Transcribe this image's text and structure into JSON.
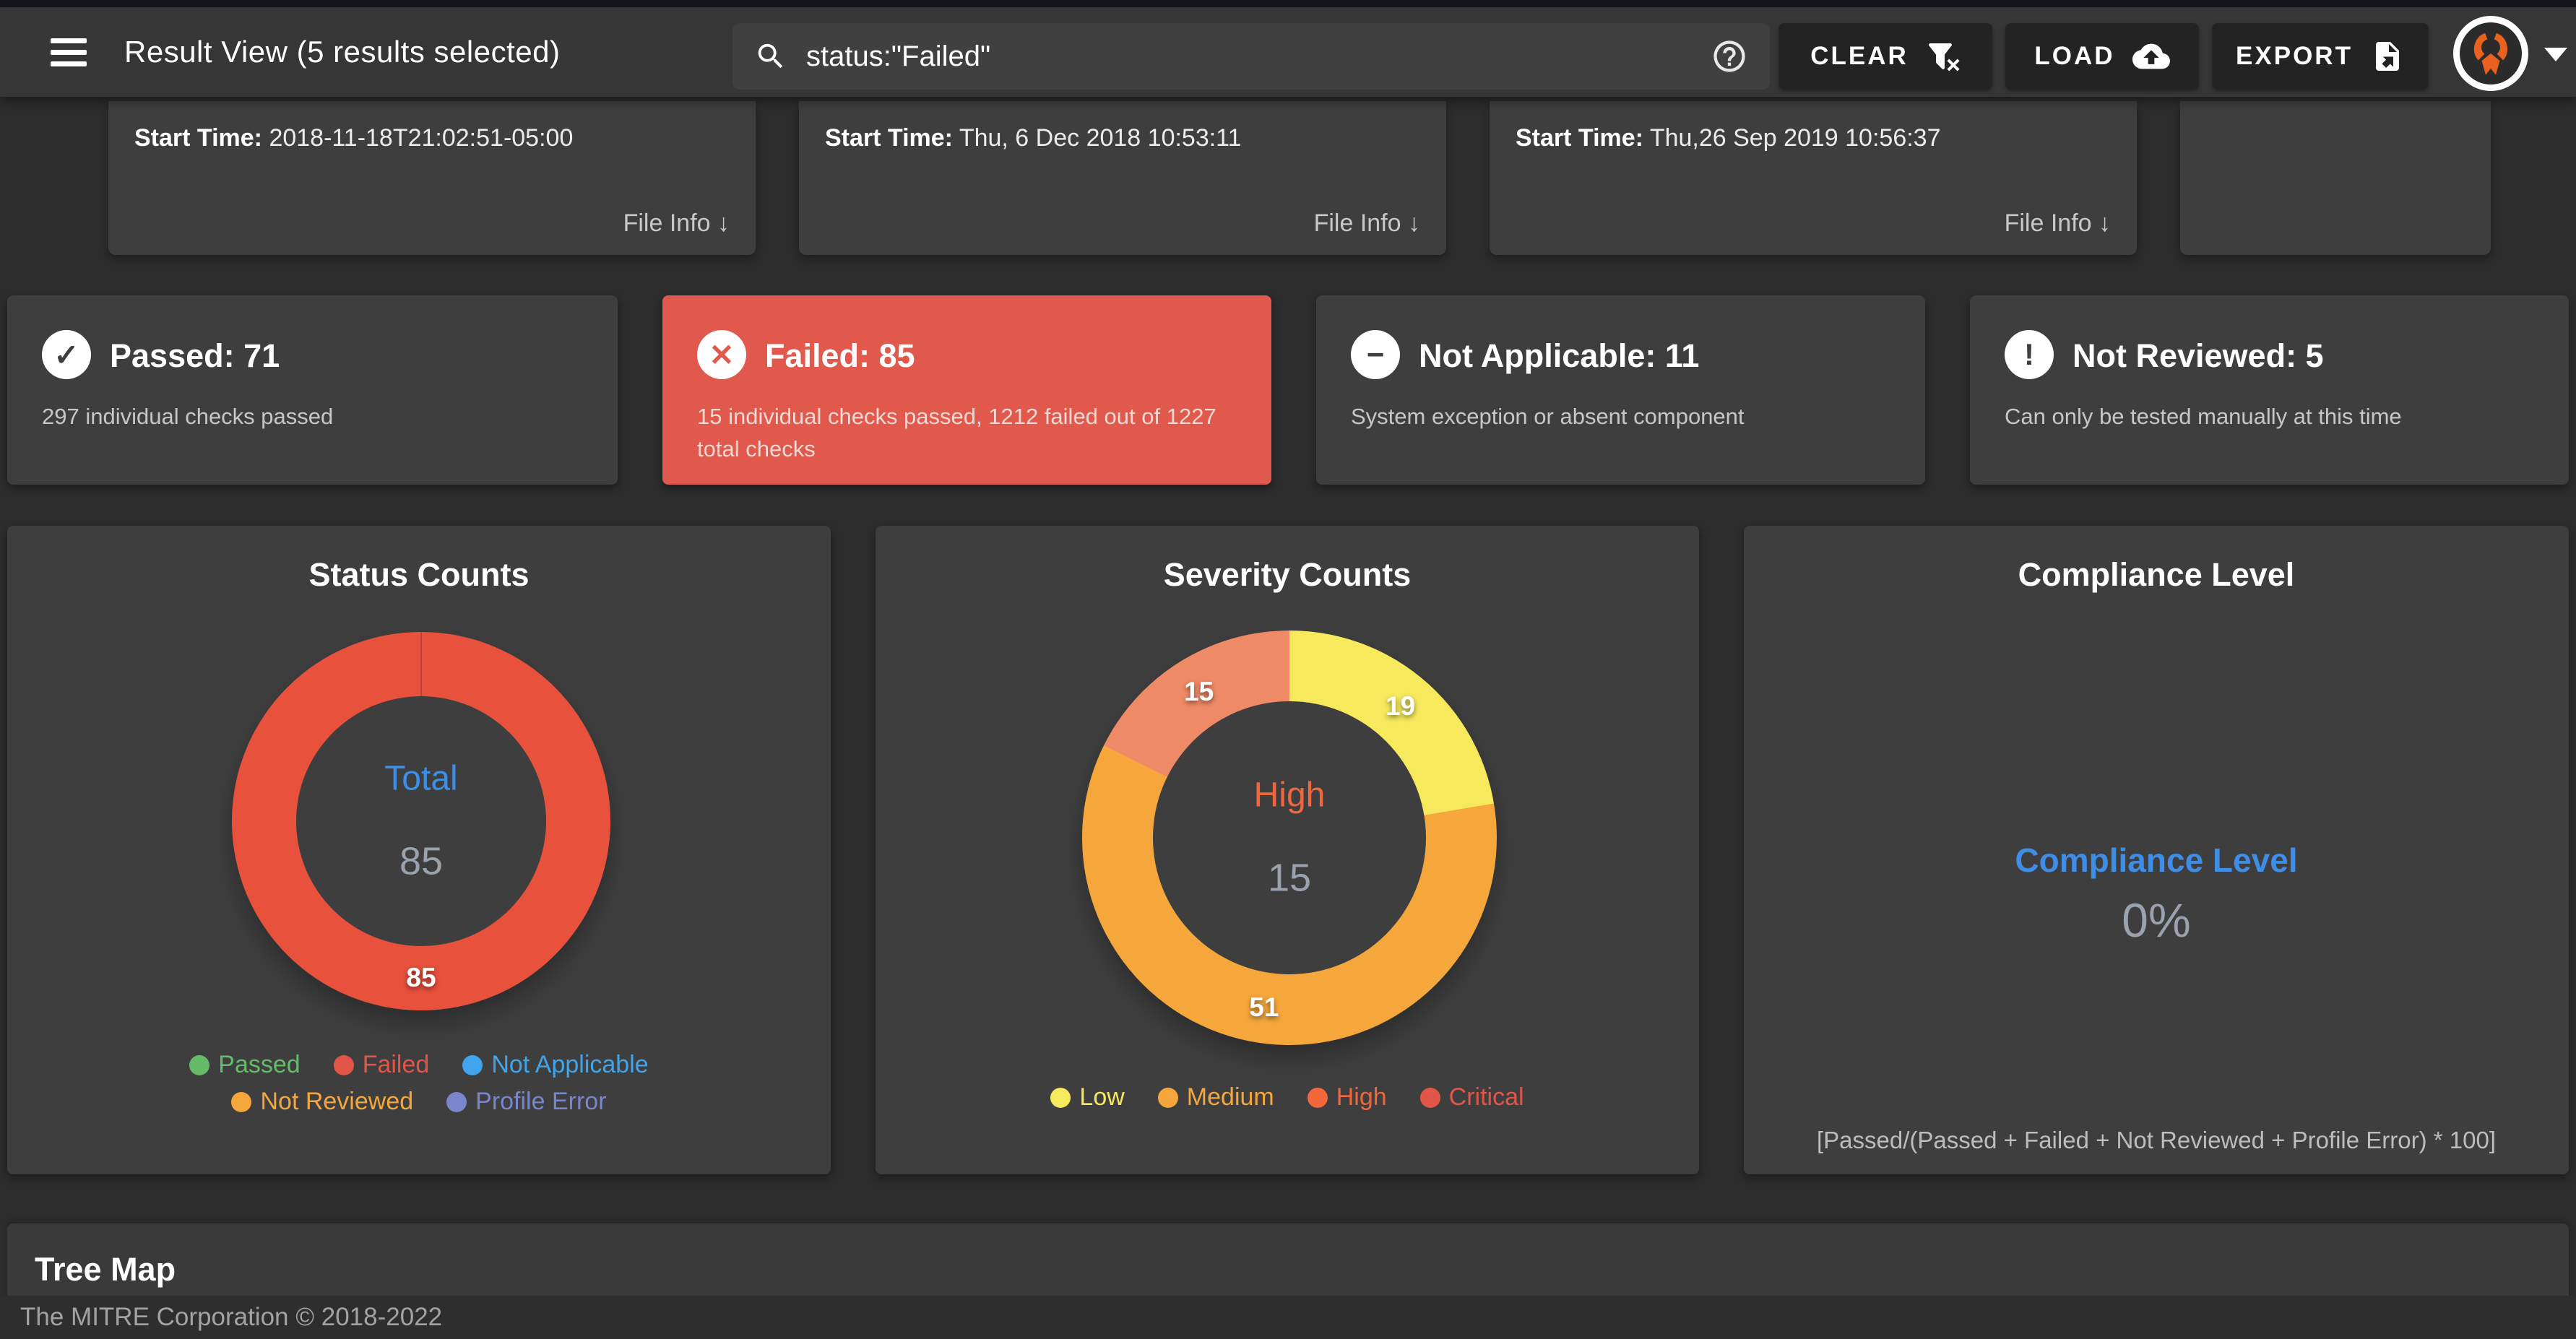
{
  "app": {
    "title": "Result View (5 results selected)",
    "search": {
      "value": "status:\"Failed\""
    },
    "buttons": {
      "clear": "CLEAR",
      "load": "LOAD",
      "export": "EXPORT"
    },
    "accent_blue": "#3e8ee8",
    "failed_red": "#e0594c"
  },
  "file_cards": [
    {
      "label": "Start Time:",
      "value": "2018-11-18T21:02:51-05:00",
      "file_info": "File Info ↓"
    },
    {
      "label": "Start Time:",
      "value": "Thu, 6 Dec 2018 10:53:11",
      "file_info": "File Info ↓"
    },
    {
      "label": "Start Time:",
      "value": "Thu,26 Sep 2019 10:56:37",
      "file_info": "File Info ↓"
    },
    {
      "label": "",
      "value": "",
      "file_info": ""
    }
  ],
  "status_cards": [
    {
      "title": "Passed: 71",
      "subtitle": "297 individual checks passed",
      "icon_glyph": "✓"
    },
    {
      "title": "Failed: 85",
      "subtitle": "15 individual checks passed, 1212 failed out of 1227 total checks",
      "icon_glyph": "✕"
    },
    {
      "title": "Not Applicable: 11",
      "subtitle": "System exception or absent component",
      "icon_glyph": "−"
    },
    {
      "title": "Not Reviewed: 5",
      "subtitle": "Can only be tested manually at this time",
      "icon_glyph": "!"
    }
  ],
  "chart_data": [
    {
      "type": "pie",
      "title": "Status Counts",
      "center_label": "Total",
      "center_label_color": "#3e8ee8",
      "center_value": "85",
      "center_value_color": "#9aa3ad",
      "series": [
        {
          "name": "Failed",
          "value": 85,
          "color": "#e8513c",
          "label": "85"
        }
      ],
      "legend": [
        {
          "label": "Passed",
          "color": "#66bb6a"
        },
        {
          "label": "Failed",
          "color": "#e25549"
        },
        {
          "label": "Not Applicable",
          "color": "#41a5ee"
        },
        {
          "label": "Not Reviewed",
          "color": "#f5a73b"
        },
        {
          "label": "Profile Error",
          "color": "#7986cb"
        }
      ],
      "legend_position": "bottom"
    },
    {
      "type": "pie",
      "title": "Severity Counts",
      "center_label": "High",
      "center_label_color": "#f2663c",
      "center_value": "15",
      "center_value_color": "#9aa3ad",
      "series": [
        {
          "name": "Low",
          "value": 19,
          "color": "#f6e95c",
          "label": "19"
        },
        {
          "name": "Medium",
          "value": 51,
          "color": "#f5a73b",
          "label": "51"
        },
        {
          "name": "High",
          "value": 15,
          "color": "#ef8a67",
          "label": "15"
        }
      ],
      "legend": [
        {
          "label": "Low",
          "color": "#f6e95c"
        },
        {
          "label": "Medium",
          "color": "#f5a73b"
        },
        {
          "label": "High",
          "color": "#f2663c"
        },
        {
          "label": "Critical",
          "color": "#e25549"
        }
      ],
      "legend_position": "bottom"
    },
    {
      "type": "gauge",
      "title": "Compliance Level",
      "label": "Compliance Level",
      "label_color": "#3e8ee8",
      "value": "0%",
      "value_color": "#9aa3ad",
      "formula": "[Passed/(Passed + Failed + Not Reviewed + Profile Error) * 100]"
    }
  ],
  "tree_map": {
    "title": "Tree Map"
  },
  "footer": {
    "text": "The MITRE Corporation © 2018-2022"
  }
}
